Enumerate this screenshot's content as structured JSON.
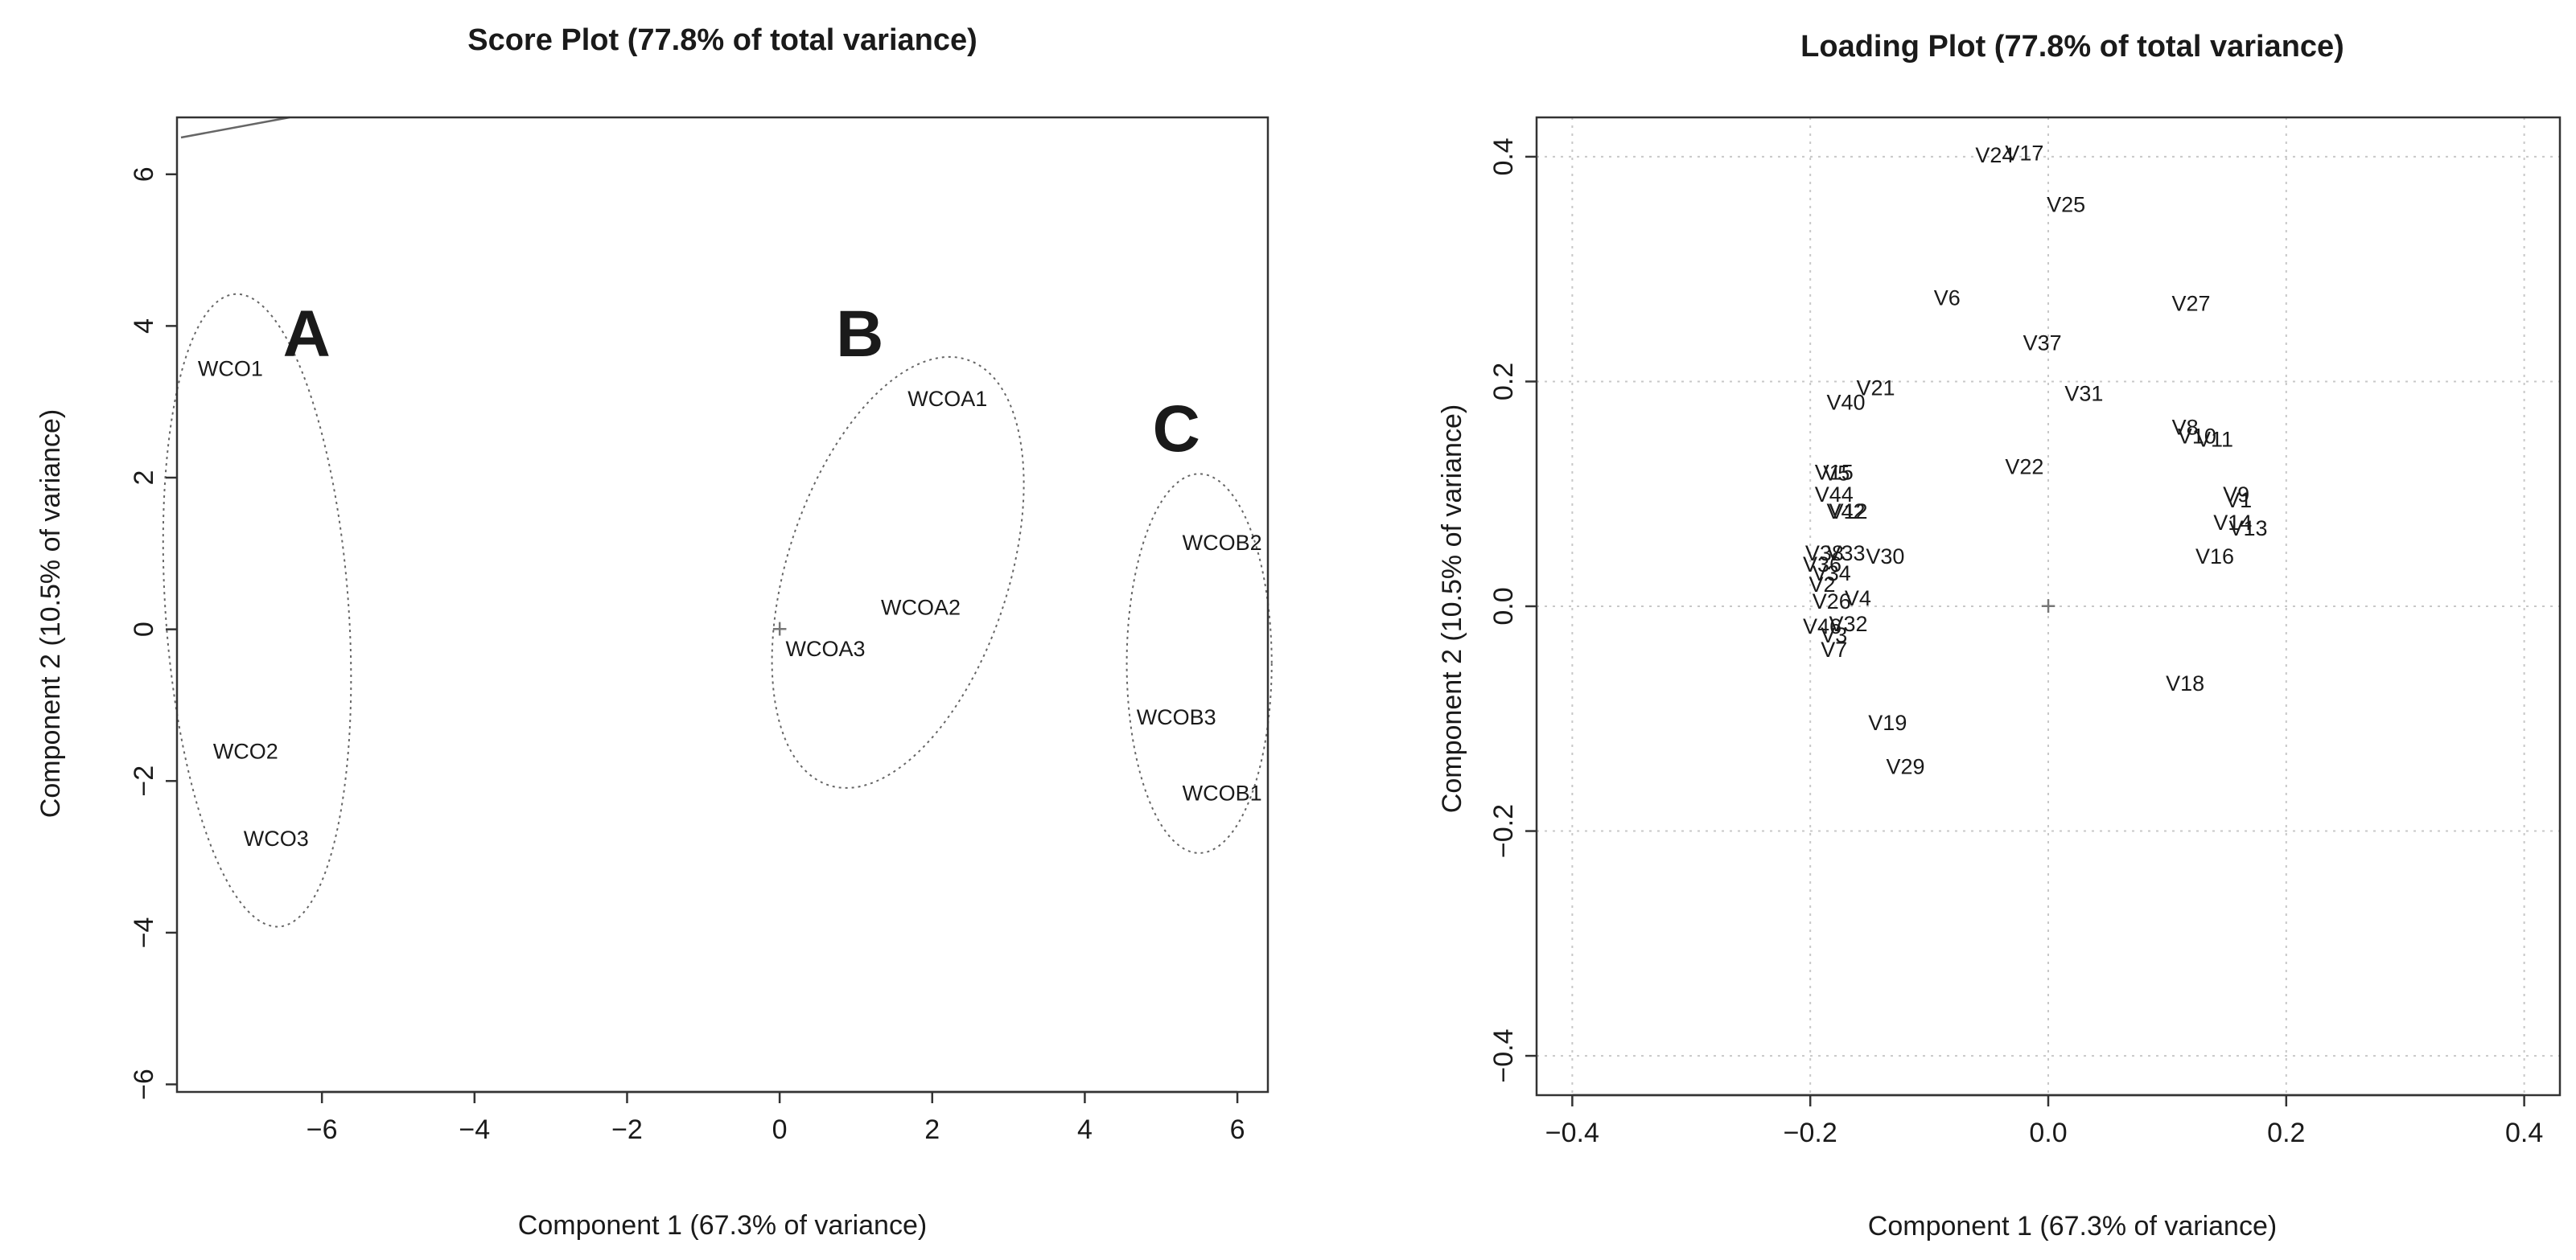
{
  "chart_data": [
    {
      "type": "scatter",
      "title": "Score Plot (77.8% of total variance)",
      "xlabel": "Component 1 (67.3% of variance)",
      "ylabel": "Component 2 (10.5% of variance)",
      "xlim": [
        -7.9,
        6.4
      ],
      "ylim": [
        -6.1,
        6.75
      ],
      "xticks": [
        -6,
        -4,
        -2,
        0,
        2,
        4,
        6
      ],
      "yticks": [
        -6,
        -4,
        -2,
        0,
        2,
        4,
        6
      ],
      "grid": false,
      "points": [
        {
          "label": "WCO1",
          "x": -7.2,
          "y": 3.45
        },
        {
          "label": "WCO2",
          "x": -7.0,
          "y": -1.6
        },
        {
          "label": "WCO3",
          "x": -6.6,
          "y": -2.75
        },
        {
          "label": "WCOA1",
          "x": 2.2,
          "y": 3.05
        },
        {
          "label": "WCOA2",
          "x": 1.85,
          "y": 0.3
        },
        {
          "label": "WCOA3",
          "x": 0.6,
          "y": -0.25
        },
        {
          "label": "WCOB2",
          "x": 5.8,
          "y": 1.15
        },
        {
          "label": "WCOB3",
          "x": 5.2,
          "y": -1.15
        },
        {
          "label": "WCOB1",
          "x": 5.8,
          "y": -2.15
        }
      ],
      "groups": [
        {
          "label": "A",
          "x": -6.2,
          "y": 3.6,
          "cx": -6.85,
          "cy": 0.25,
          "rx": 1.2,
          "ry": 4.18,
          "angle": -4
        },
        {
          "label": "B",
          "x": 1.05,
          "y": 3.6,
          "cx": 1.55,
          "cy": 0.75,
          "rx": 1.45,
          "ry": 2.95,
          "angle": 18
        },
        {
          "label": "C",
          "x": 5.2,
          "y": 2.35,
          "cx": 5.5,
          "cy": -0.45,
          "rx": 0.95,
          "ry": 2.5,
          "angle": 0
        }
      ],
      "origin_marker": {
        "x": 0,
        "y": 0,
        "symbol": "+"
      }
    },
    {
      "type": "scatter",
      "title": "Loading Plot (77.8% of total variance)",
      "xlabel": "Component 1 (67.3% of variance)",
      "ylabel": "Component 2 (10.5% of variance)",
      "xlim": [
        -0.43,
        0.43
      ],
      "ylim": [
        -0.435,
        0.435
      ],
      "xticks": [
        -0.4,
        -0.2,
        0.0,
        0.2,
        0.4
      ],
      "yticks": [
        -0.4,
        -0.2,
        0.0,
        0.2,
        0.4
      ],
      "xtick_labels": [
        "-0.4",
        "-0.2",
        "0.0",
        "0.2",
        "0.4"
      ],
      "ytick_labels": [
        "-0.4",
        "-0.2",
        "0.0",
        "0.2",
        "0.4"
      ],
      "grid": true,
      "points": [
        {
          "label": "V24",
          "x": -0.045,
          "y": 0.402
        },
        {
          "label": "V17",
          "x": -0.02,
          "y": 0.404
        },
        {
          "label": "V25",
          "x": 0.015,
          "y": 0.358
        },
        {
          "label": "V6",
          "x": -0.085,
          "y": 0.275
        },
        {
          "label": "V27",
          "x": 0.12,
          "y": 0.27
        },
        {
          "label": "V37",
          "x": -0.005,
          "y": 0.235
        },
        {
          "label": "V21",
          "x": -0.145,
          "y": 0.195
        },
        {
          "label": "V31",
          "x": 0.03,
          "y": 0.19
        },
        {
          "label": "V40",
          "x": -0.17,
          "y": 0.182
        },
        {
          "label": "V8",
          "x": 0.115,
          "y": 0.16
        },
        {
          "label": "V10",
          "x": 0.125,
          "y": 0.152
        },
        {
          "label": "V11",
          "x": 0.14,
          "y": 0.149
        },
        {
          "label": "V22",
          "x": -0.02,
          "y": 0.125
        },
        {
          "label": "V15",
          "x": -0.18,
          "y": 0.12
        },
        {
          "label": "V5",
          "x": -0.178,
          "y": 0.119
        },
        {
          "label": "V44",
          "x": -0.18,
          "y": 0.1
        },
        {
          "label": "V9",
          "x": 0.158,
          "y": 0.1
        },
        {
          "label": "V1",
          "x": 0.16,
          "y": 0.095
        },
        {
          "label": "V42",
          "x": -0.17,
          "y": 0.085
        },
        {
          "label": "V12",
          "x": -0.168,
          "y": 0.085
        },
        {
          "label": "V14",
          "x": 0.155,
          "y": 0.075
        },
        {
          "label": "V13",
          "x": 0.168,
          "y": 0.07
        },
        {
          "label": "V38",
          "x": -0.188,
          "y": 0.048
        },
        {
          "label": "V33",
          "x": -0.17,
          "y": 0.048
        },
        {
          "label": "V30",
          "x": -0.137,
          "y": 0.045
        },
        {
          "label": "V16",
          "x": 0.14,
          "y": 0.045
        },
        {
          "label": "V36",
          "x": -0.19,
          "y": 0.038
        },
        {
          "label": "V34",
          "x": -0.182,
          "y": 0.03
        },
        {
          "label": "V2",
          "x": -0.19,
          "y": 0.02
        },
        {
          "label": "V26",
          "x": -0.182,
          "y": 0.005
        },
        {
          "label": "V4",
          "x": -0.16,
          "y": 0.008
        },
        {
          "label": "V46",
          "x": -0.19,
          "y": -0.017
        },
        {
          "label": "V32",
          "x": -0.168,
          "y": -0.015
        },
        {
          "label": "V3",
          "x": -0.18,
          "y": -0.025
        },
        {
          "label": "V7",
          "x": -0.18,
          "y": -0.038
        },
        {
          "label": "V18",
          "x": 0.115,
          "y": -0.068
        },
        {
          "label": "V19",
          "x": -0.135,
          "y": -0.103
        },
        {
          "label": "V29",
          "x": -0.12,
          "y": -0.142
        }
      ],
      "origin_marker": {
        "x": 0,
        "y": 0,
        "symbol": "+"
      }
    }
  ]
}
